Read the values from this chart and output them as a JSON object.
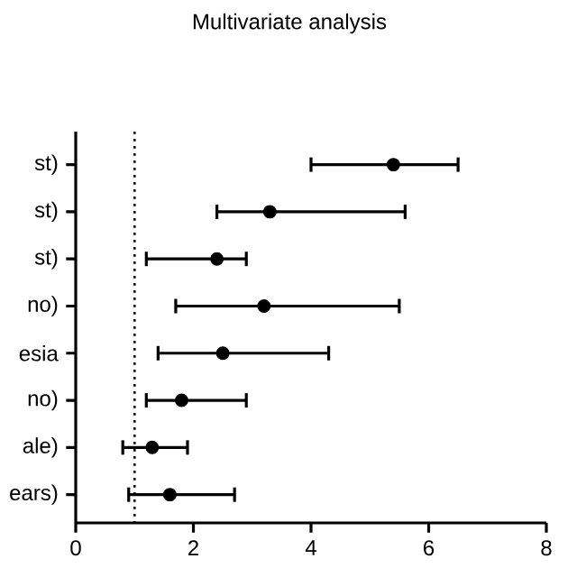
{
  "chart_data": {
    "type": "scatter",
    "title": "Multivariate analysis",
    "categories": [
      "st)",
      "st)",
      "st)",
      "no)",
      "esia",
      "no)",
      "ale)",
      "ears)"
    ],
    "values": [
      5.4,
      3.3,
      2.4,
      3.2,
      2.5,
      1.8,
      1.3,
      1.6
    ],
    "errors": [
      [
        4.0,
        6.5
      ],
      [
        2.4,
        5.6
      ],
      [
        1.2,
        2.9
      ],
      [
        1.7,
        5.5
      ],
      [
        1.4,
        4.3
      ],
      [
        1.2,
        2.9
      ],
      [
        0.8,
        1.9
      ],
      [
        0.9,
        2.7
      ]
    ],
    "orientation": "horizontal",
    "xlim": [
      0,
      8
    ],
    "xticks": [
      0,
      2,
      4,
      6,
      8
    ],
    "ref_lines": [
      {
        "axis": "x",
        "value": 1,
        "line_style": "dotted"
      }
    ],
    "color": "#000000"
  }
}
